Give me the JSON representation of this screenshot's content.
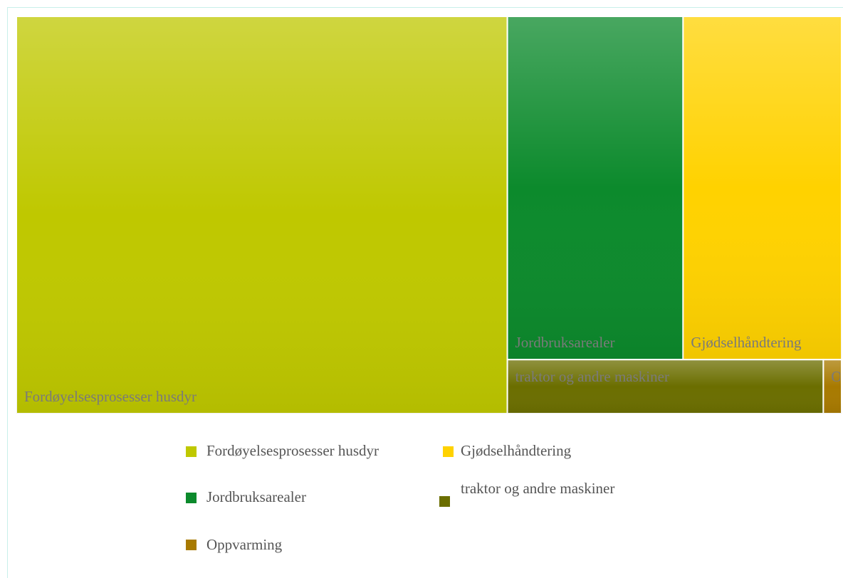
{
  "chart_data": {
    "type": "treemap",
    "categories": [
      "Fordøyelsesprosesser husdyr",
      "Jordbruksarealer",
      "Gjødselhåndtering",
      "traktor og andre maskiner",
      "Oppvarming"
    ],
    "values": [
      59.5,
      18.4,
      16.6,
      5.2,
      0.3
    ],
    "colors": [
      "#bfc800",
      "#0c8a2c",
      "#ffd200",
      "#6b6e00",
      "#a87a00"
    ]
  }
}
